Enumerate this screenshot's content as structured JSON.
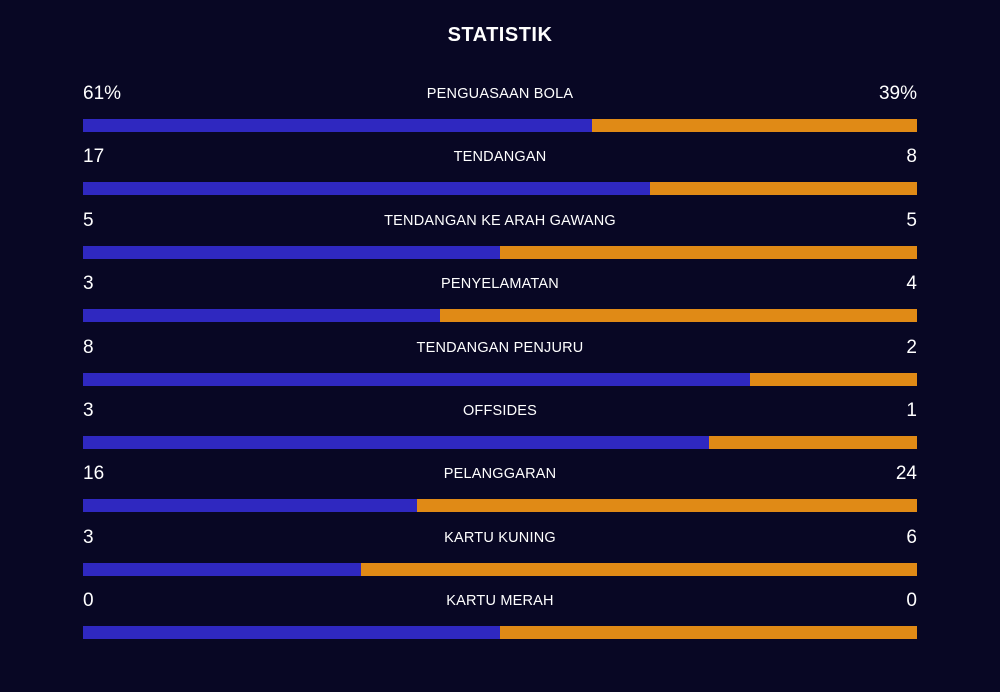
{
  "title": "STATISTIK",
  "colors": {
    "background": "#080724",
    "home": "#2f28c0",
    "away": "#e08a16"
  },
  "stats": [
    {
      "label": "PENGUASAAN BOLA",
      "home": "61%",
      "away": "39%",
      "home_value": 61,
      "away_value": 39
    },
    {
      "label": "TENDANGAN",
      "home": "17",
      "away": "8",
      "home_value": 17,
      "away_value": 8
    },
    {
      "label": "TENDANGAN KE ARAH GAWANG",
      "home": "5",
      "away": "5",
      "home_value": 5,
      "away_value": 5
    },
    {
      "label": "PENYELAMATAN",
      "home": "3",
      "away": "4",
      "home_value": 3,
      "away_value": 4
    },
    {
      "label": "TENDANGAN PENJURU",
      "home": "8",
      "away": "2",
      "home_value": 8,
      "away_value": 2
    },
    {
      "label": "OFFSIDES",
      "home": "3",
      "away": "1",
      "home_value": 3,
      "away_value": 1
    },
    {
      "label": "PELANGGARAN",
      "home": "16",
      "away": "24",
      "home_value": 16,
      "away_value": 24
    },
    {
      "label": "KARTU KUNING",
      "home": "3",
      "away": "6",
      "home_value": 3,
      "away_value": 6
    },
    {
      "label": "KARTU MERAH",
      "home": "0",
      "away": "0",
      "home_value": 0,
      "away_value": 0
    }
  ]
}
